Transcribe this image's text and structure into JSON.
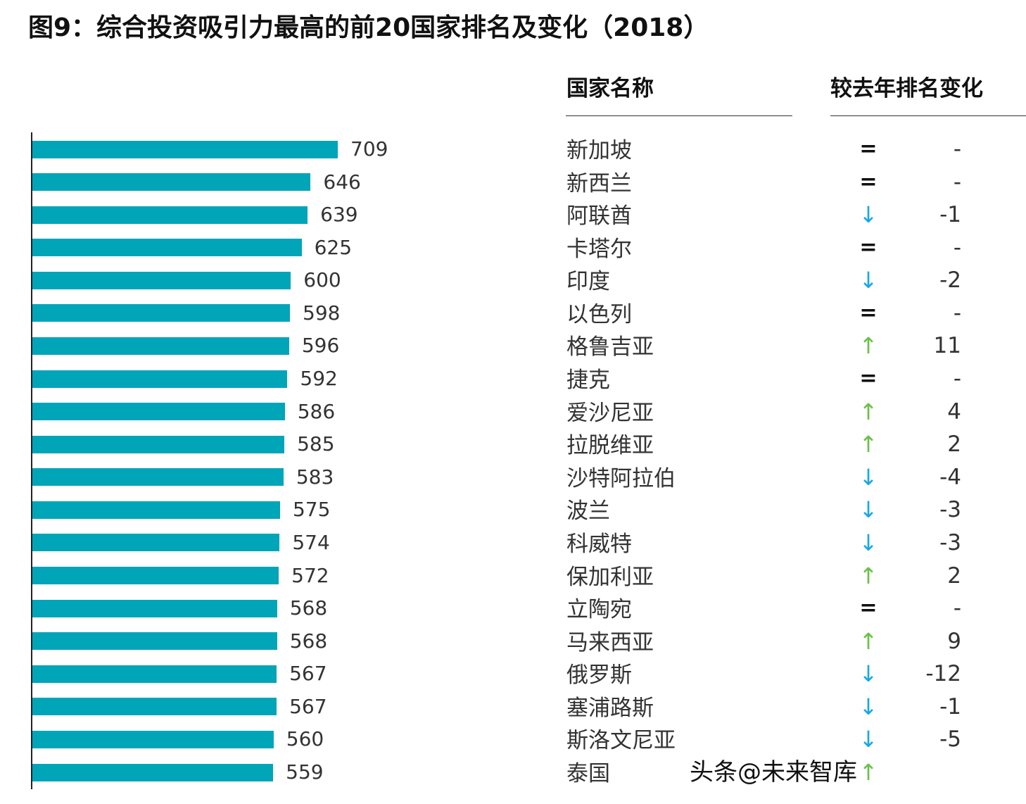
{
  "title": "图9：综合投资吸引力最高的前20国家排名及变化（2018）",
  "columns": {
    "country": "国家名称",
    "change": "较去年排名变化"
  },
  "colors": {
    "bar": "#00a5b8",
    "down": "#1aa7e8",
    "up": "#6cc04a",
    "same": "#111111"
  },
  "watermark": "头条@未来智库",
  "chart_data": {
    "type": "bar",
    "orientation": "horizontal",
    "xlim": [
      0,
      709
    ],
    "grid": false,
    "categories": [
      "新加坡",
      "新西兰",
      "阿联酋",
      "卡塔尔",
      "印度",
      "以色列",
      "格鲁吉亚",
      "捷克",
      "爱沙尼亚",
      "拉脱维亚",
      "沙特阿拉伯",
      "波兰",
      "科威特",
      "保加利亚",
      "立陶宛",
      "马来西亚",
      "俄罗斯",
      "塞浦路斯",
      "斯洛文尼亚",
      "泰国"
    ],
    "values": [
      709,
      646,
      639,
      625,
      600,
      598,
      596,
      592,
      586,
      585,
      583,
      575,
      574,
      572,
      568,
      568,
      567,
      567,
      560,
      559
    ],
    "rank_change": [
      {
        "direction": "same",
        "label": "-"
      },
      {
        "direction": "same",
        "label": "-"
      },
      {
        "direction": "down",
        "label": "-1"
      },
      {
        "direction": "same",
        "label": "-"
      },
      {
        "direction": "down",
        "label": "-2"
      },
      {
        "direction": "same",
        "label": "-"
      },
      {
        "direction": "up",
        "label": "11"
      },
      {
        "direction": "same",
        "label": "-"
      },
      {
        "direction": "up",
        "label": "4"
      },
      {
        "direction": "up",
        "label": "2"
      },
      {
        "direction": "down",
        "label": "-4"
      },
      {
        "direction": "down",
        "label": "-3"
      },
      {
        "direction": "down",
        "label": "-3"
      },
      {
        "direction": "up",
        "label": "2"
      },
      {
        "direction": "same",
        "label": "-"
      },
      {
        "direction": "up",
        "label": "9"
      },
      {
        "direction": "down",
        "label": "-12"
      },
      {
        "direction": "down",
        "label": "-1"
      },
      {
        "direction": "down",
        "label": "-5"
      },
      {
        "direction": "up",
        "label": ""
      }
    ]
  }
}
